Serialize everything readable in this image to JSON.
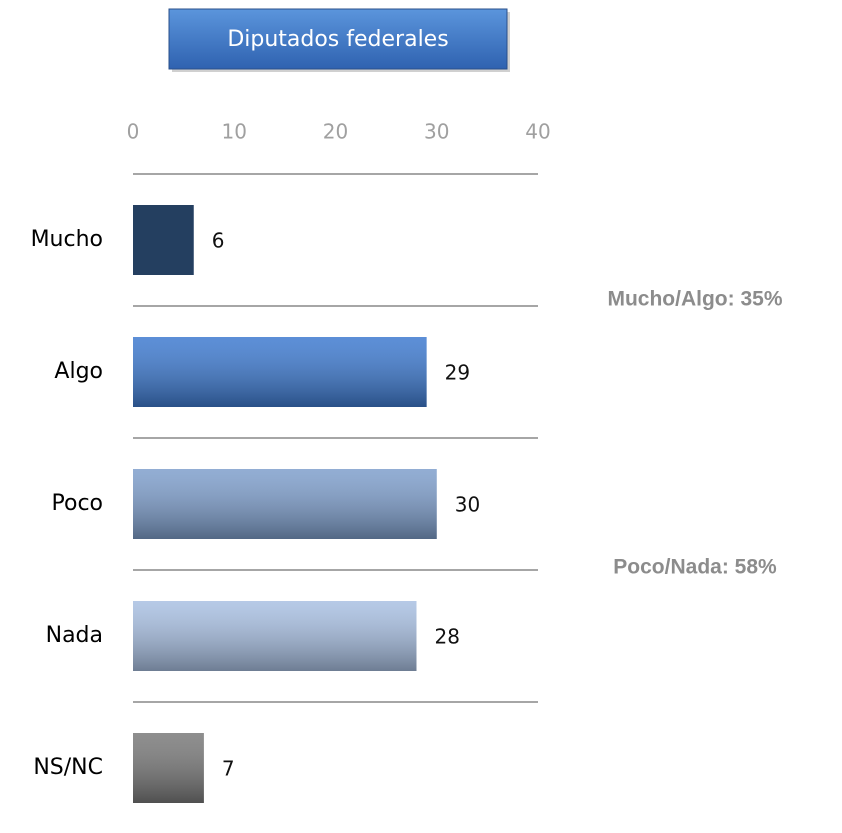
{
  "chart_data": {
    "type": "barh",
    "title": "Diputados federales",
    "categories": [
      "Mucho",
      "Algo",
      "Poco",
      "Nada",
      "NS/NC"
    ],
    "values": [
      6,
      29,
      30,
      28,
      7
    ],
    "colors": [
      "#243f60",
      "#3f7bd0",
      "#7f9fcc",
      "#a9c0e2",
      "#7a7a7a"
    ],
    "xlim": [
      0,
      40
    ],
    "xticks": [
      0,
      10,
      20,
      30,
      40
    ],
    "grid": false,
    "annotations": [
      "Mucho/Algo: 35%",
      "Poco/Nada: 58%"
    ]
  }
}
